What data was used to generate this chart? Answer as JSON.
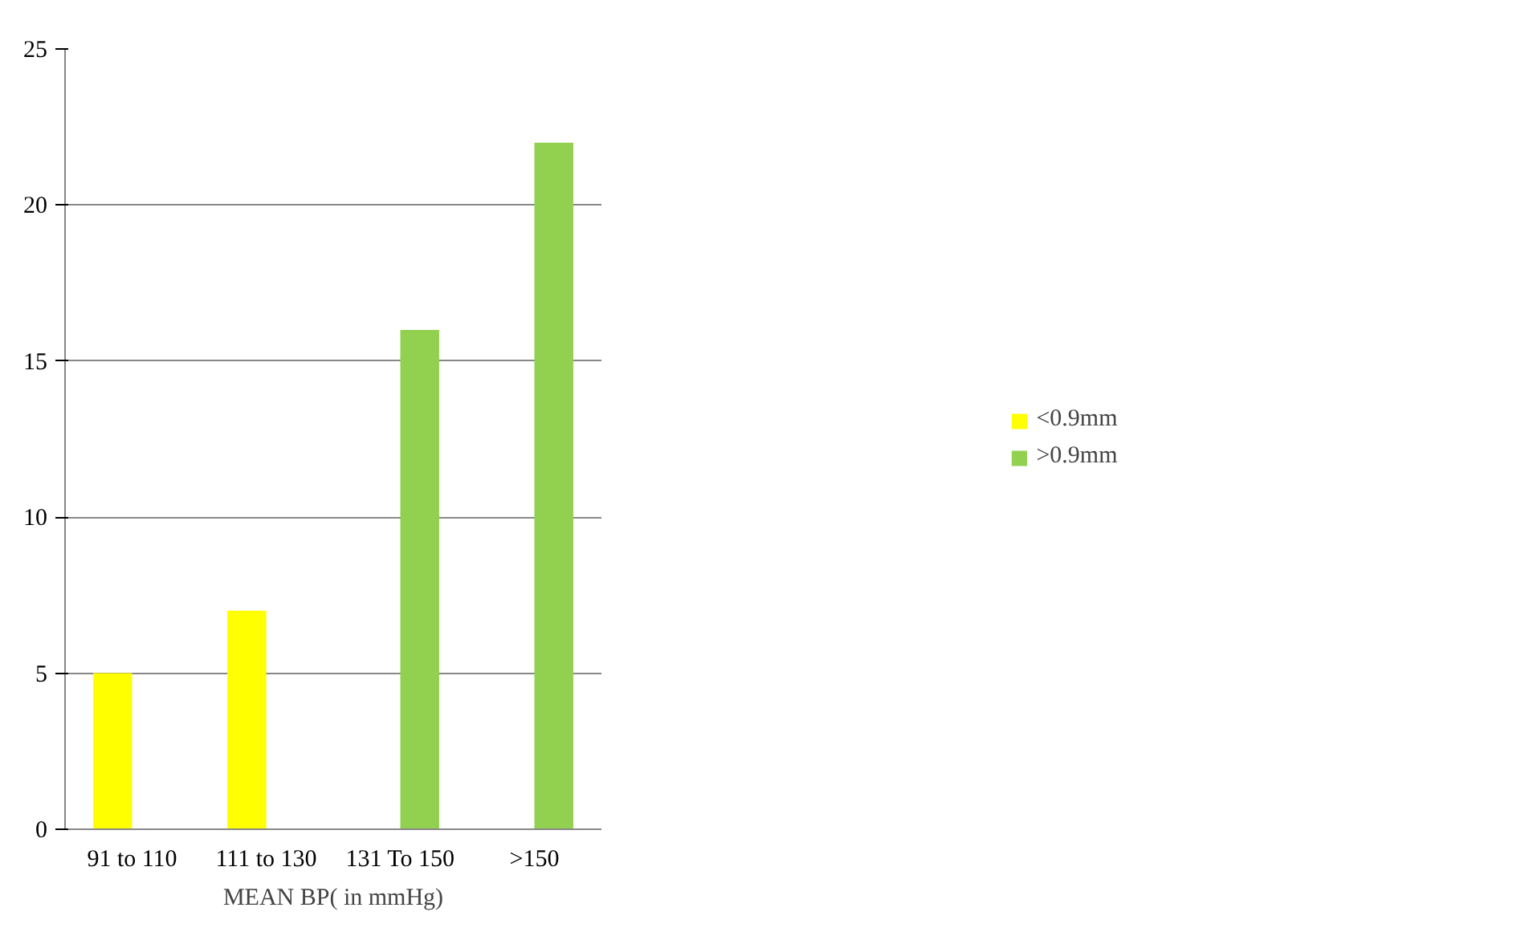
{
  "chart_data": {
    "type": "bar",
    "xlabel": "MEAN BP( in mmHg)",
    "categories": [
      "91 to 110",
      "111 to 130",
      "131 To 150",
      ">150"
    ],
    "series": [
      {
        "name": "<0.9mm",
        "color": "#ffff00",
        "values": [
          5,
          7,
          null,
          null
        ]
      },
      {
        "name": ">0.9mm",
        "color": "#92d050",
        "values": [
          null,
          null,
          16,
          22
        ]
      }
    ],
    "ylim": [
      0,
      25
    ],
    "yticks": [
      0,
      5,
      10,
      15,
      20,
      25
    ],
    "grid": "y",
    "legend": "right"
  }
}
